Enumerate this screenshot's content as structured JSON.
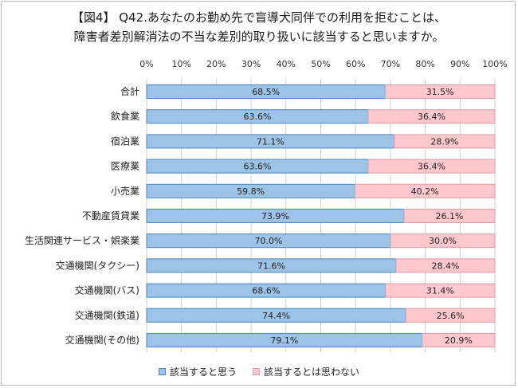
{
  "title": {
    "line1": "【図4】 Q42.あなたのお勤め先で盲導犬同伴での利用を拒むことは、",
    "line2": "障害者差別解消法の不当な差別的取り扱いに該当すると思いますか。"
  },
  "colors": {
    "series1": "#9dc3e6",
    "series1_border": "#4a86c0",
    "series2": "#ffc7ce",
    "series2_border": "#e39aa4",
    "grid": "#cfcfcf"
  },
  "chart_data": {
    "type": "bar",
    "orientation": "horizontal",
    "stacked": true,
    "xlim": [
      0,
      100
    ],
    "x_ticks": [
      "0%",
      "10%",
      "20%",
      "30%",
      "40%",
      "50%",
      "60%",
      "70%",
      "80%",
      "90%",
      "100%"
    ],
    "categories": [
      "合計",
      "飲食業",
      "宿泊業",
      "医療業",
      "小売業",
      "不動産賃貸業",
      "生活関連サービス・娯楽業",
      "交通機関(タクシー)",
      "交通機関(バス)",
      "交通機関(鉄道)",
      "交通機関(その他)"
    ],
    "series": [
      {
        "name": "該当すると思う",
        "values": [
          68.5,
          63.6,
          71.1,
          63.6,
          59.8,
          73.9,
          70.0,
          71.6,
          68.6,
          74.4,
          79.1
        ]
      },
      {
        "name": "該当するとは思わない",
        "values": [
          31.5,
          36.4,
          28.9,
          36.4,
          40.2,
          26.1,
          30.0,
          28.4,
          31.4,
          25.6,
          20.9
        ]
      }
    ],
    "data_labels": [
      [
        "68.5%",
        "63.6%",
        "71.1%",
        "63.6%",
        "59.8%",
        "73.9%",
        "70.0%",
        "71.6%",
        "68.6%",
        "74.4%",
        "79.1%"
      ],
      [
        "31.5%",
        "36.4%",
        "28.9%",
        "36.4%",
        "40.2%",
        "26.1%",
        "30.0%",
        "28.4%",
        "31.4%",
        "25.6%",
        "20.9%"
      ]
    ],
    "grid": true,
    "legend_position": "bottom"
  }
}
